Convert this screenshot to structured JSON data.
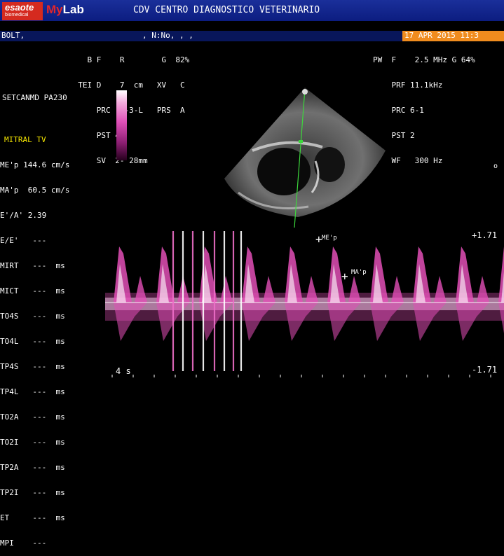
{
  "header": {
    "brand_main": "esaote",
    "brand_sub": "biomedical",
    "product_my": "My",
    "product_lab": "Lab",
    "clinic": "CDV CENTRO DIAGNOSTICO VETERINARIO"
  },
  "patient": {
    "name": "BOLT,",
    "id": ", N:No, , ,",
    "datetime": "17 APR 2015 11:3"
  },
  "imaging_params": [
    "    B F    R        G  82%",
    "  TEI D    7  cm   XV   C",
    "      PRC  6-3-L   PRS  A",
    "      PST 4",
    "      SV  2- 28mm"
  ],
  "doppler_params": [
    "PW  F    2.5 MHz G 64%",
    "    PRF 11.1kHz",
    "    PRC 6-1",
    "    PST 2",
    "    WF   300 Hz"
  ],
  "probe": "SETCANMD PA230",
  "measurements": {
    "title": "MITRAL TV",
    "rows": [
      "ME'p 144.6 cm/s",
      "MA'p  60.5 cm/s",
      "E'/A' 2.39",
      "E/E'   ---",
      "MIRT   ---  ms",
      "MICT   ---  ms",
      "TO4S   ---  ms",
      "TO4L   ---  ms",
      "TP4S   ---  ms",
      "TP4L   ---  ms",
      "TO2A   ---  ms",
      "TO2I   ---  ms",
      "TP2A   ---  ms",
      "TP2I   ---  ms",
      "ET     ---  ms",
      "MPI    ---"
    ]
  },
  "doppler": {
    "scale_top": "+1.71",
    "scale_bottom": "-1.71",
    "sweep": "4 s",
    "marker_e": "ME'p",
    "marker_a": "MA'p"
  },
  "colors": {
    "header_blue": "#1a2f9a",
    "patient_bar": "#08165a",
    "date_orange": "#f08c1e",
    "spectrum_magenta": "#e24fb6",
    "title_yellow": "#f5e600"
  }
}
